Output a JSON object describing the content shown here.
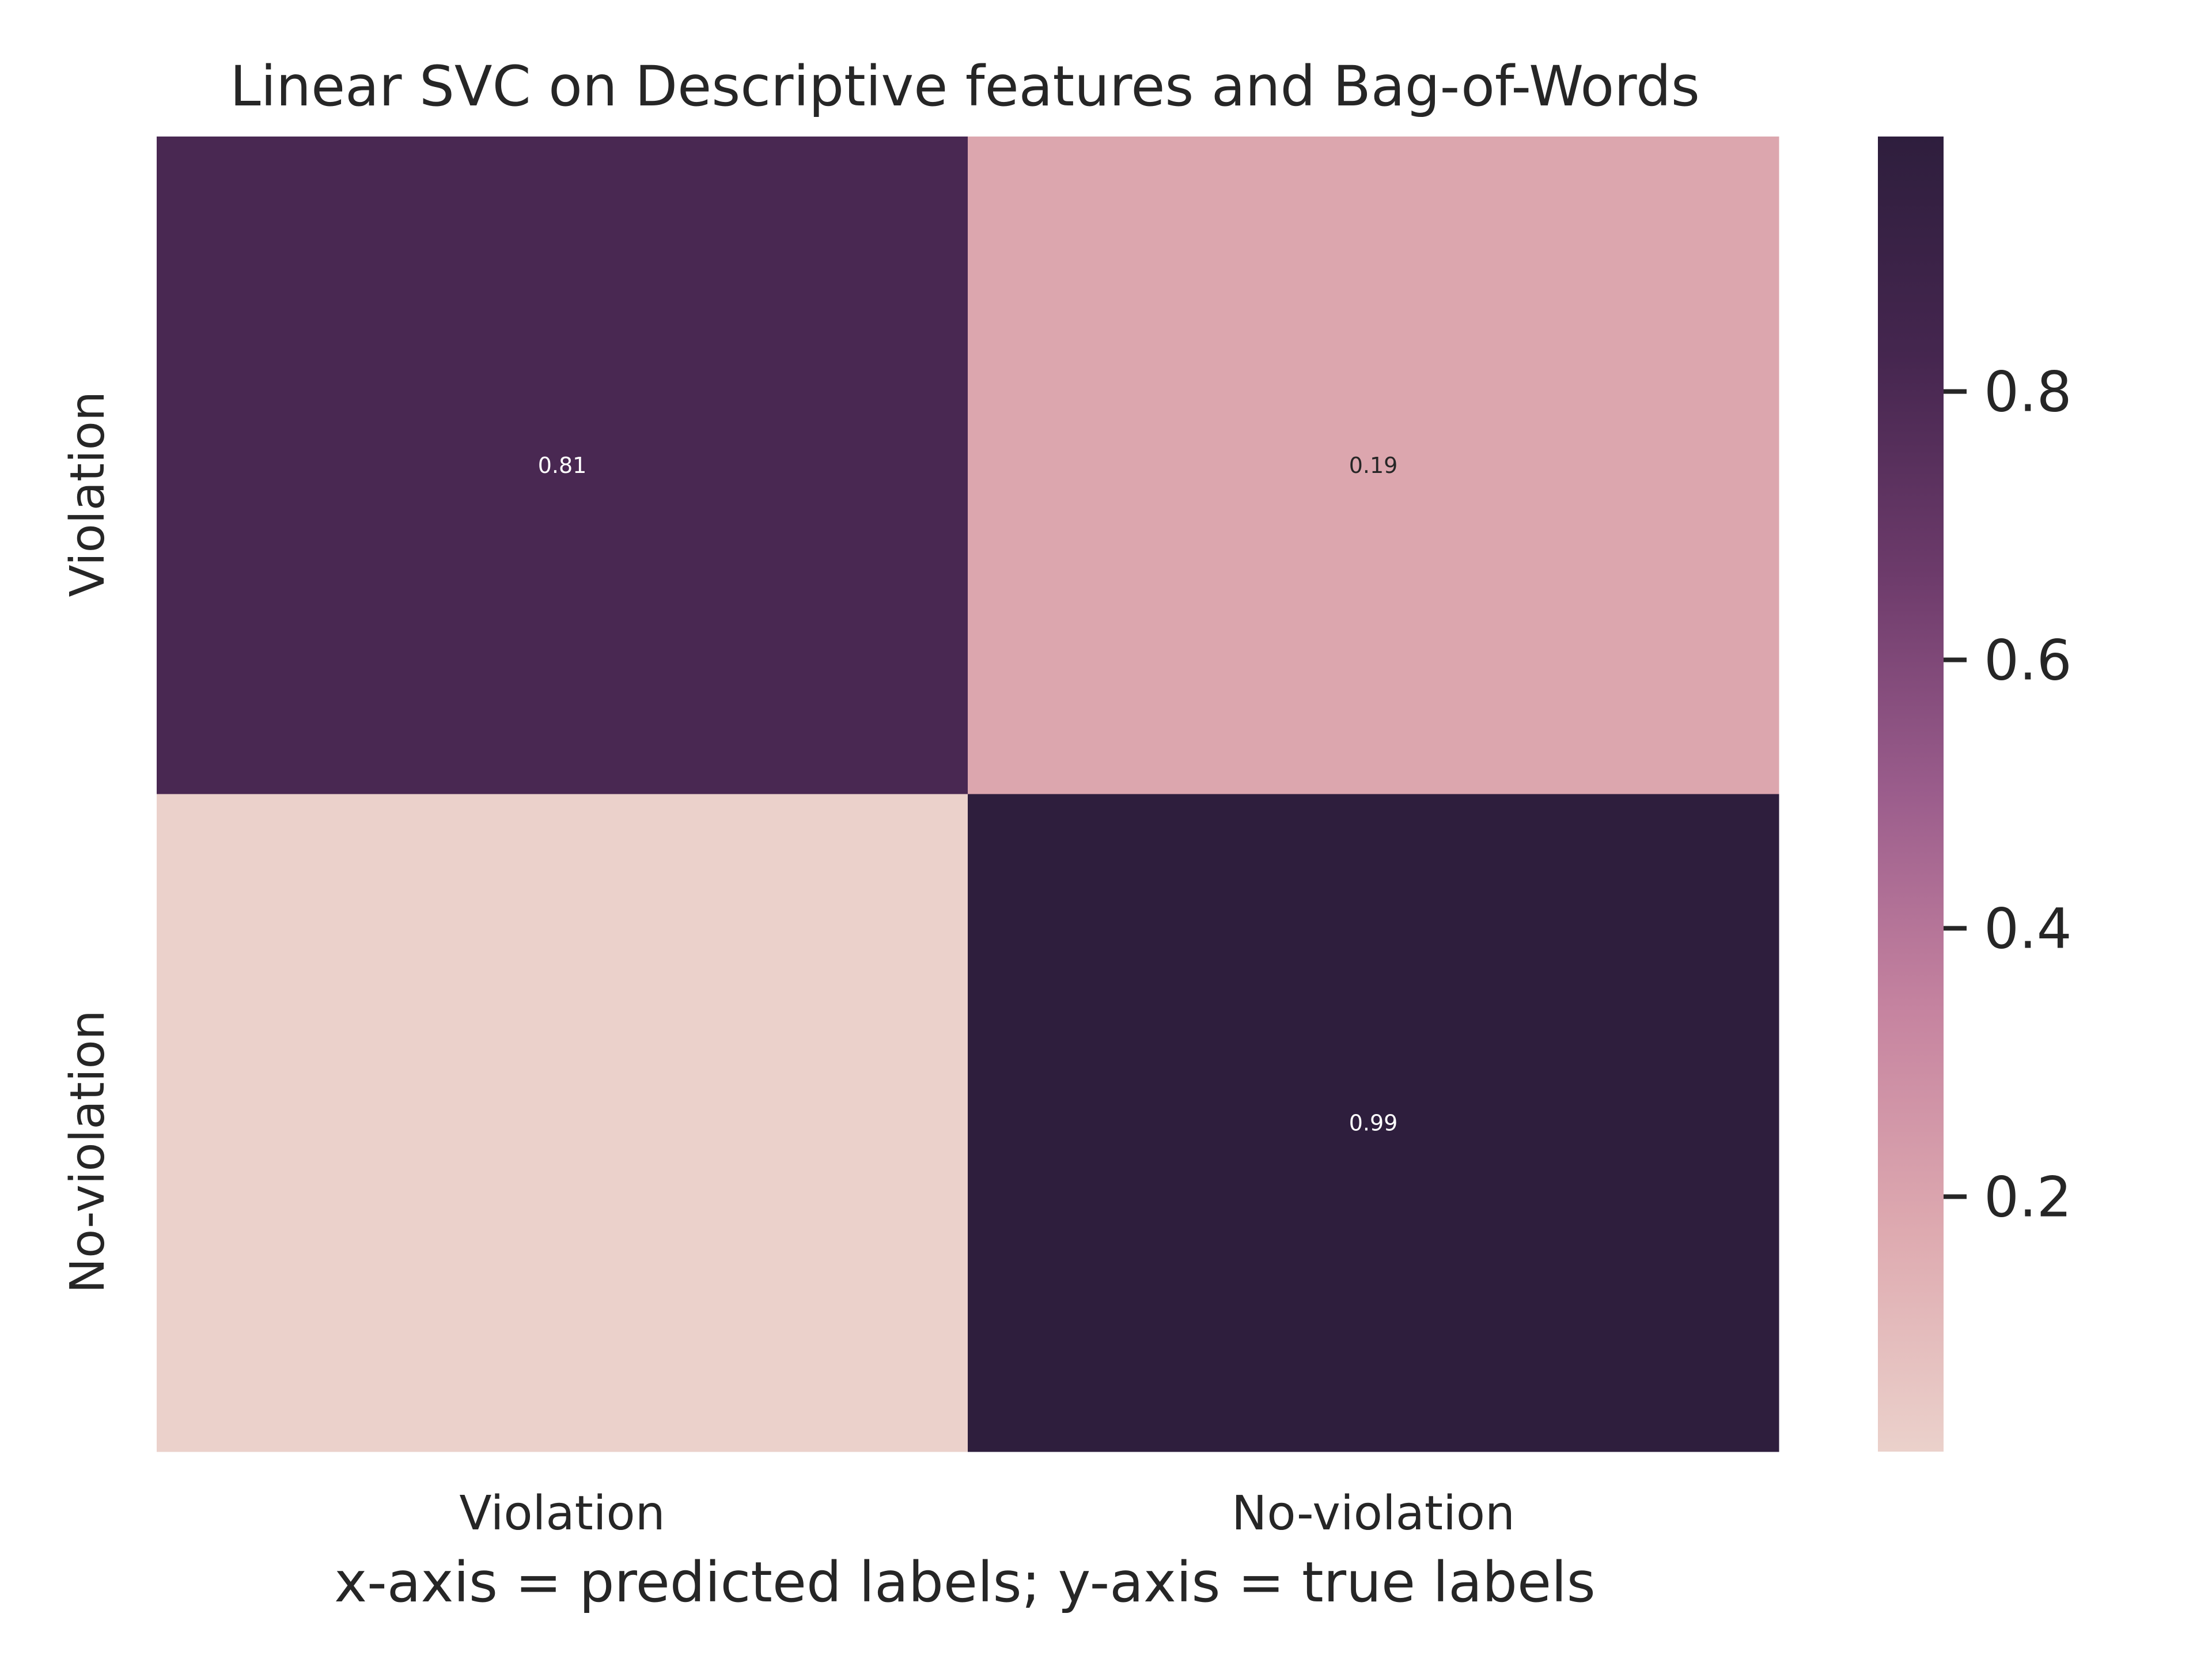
{
  "chart_data": {
    "type": "heatmap",
    "title": "Linear SVC on Descriptive features and Bag-of-Words",
    "xlabel": "x-axis = predicted labels; y-axis = true labels",
    "ylabel": "",
    "x_categories": [
      "Violation",
      "No-violation"
    ],
    "y_categories": [
      "Violation",
      "No-violation"
    ],
    "values": [
      [
        0.81,
        0.19
      ],
      [
        0.01,
        0.99
      ]
    ],
    "annotations": [
      [
        "0.81",
        "0.19"
      ],
      [
        "",
        "0.99"
      ]
    ],
    "colorbar": {
      "range": [
        0.01,
        0.99
      ],
      "ticks": [
        0.2,
        0.4,
        0.6,
        0.8
      ],
      "tick_labels": [
        "0.2",
        "0.4",
        "0.6",
        "0.8"
      ],
      "colormap_stops": [
        "#ebd1cb",
        "#deaab0",
        "#c684a0",
        "#9b5d8c",
        "#6d3b6b",
        "#45264f",
        "#2e1e3d"
      ]
    }
  }
}
